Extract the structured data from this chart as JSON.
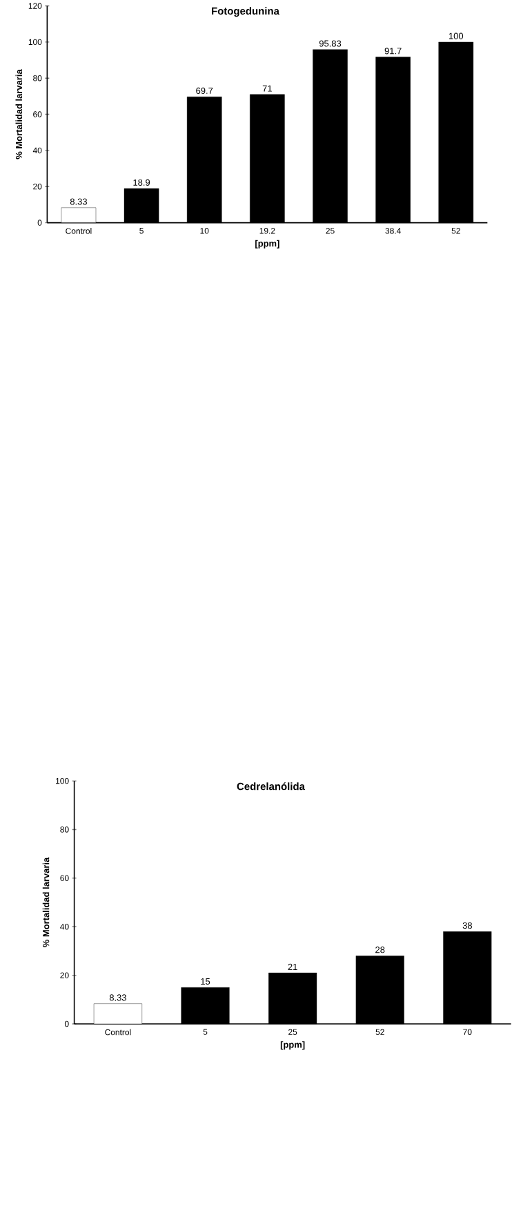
{
  "chart_data": [
    {
      "type": "bar",
      "title": "Fotogedunina",
      "xlabel": "[ppm]",
      "ylabel": "% Mortalidad larvaria",
      "categories": [
        "Control",
        "5",
        "10",
        "19.2",
        "25",
        "38.4",
        "52"
      ],
      "values": [
        8.33,
        18.9,
        69.7,
        71,
        95.83,
        91.7,
        100
      ],
      "colors": [
        "#ffffff",
        "#000000",
        "#000000",
        "#000000",
        "#000000",
        "#000000",
        "#000000"
      ],
      "ylim": [
        0,
        120
      ],
      "yticks": [
        0,
        20,
        40,
        60,
        80,
        100,
        120
      ],
      "data_labels": true
    },
    {
      "type": "bar",
      "title": "Cedrelanólida",
      "xlabel": "[ppm]",
      "ylabel": "% Mortalidad larvaria",
      "categories": [
        "Control",
        "5",
        "25",
        "52",
        "70"
      ],
      "values": [
        8.33,
        15,
        21,
        28,
        38
      ],
      "colors": [
        "#ffffff",
        "#000000",
        "#000000",
        "#000000",
        "#000000"
      ],
      "ylim": [
        0,
        100
      ],
      "yticks": [
        0,
        20,
        40,
        60,
        80,
        100
      ],
      "data_labels": true
    }
  ]
}
